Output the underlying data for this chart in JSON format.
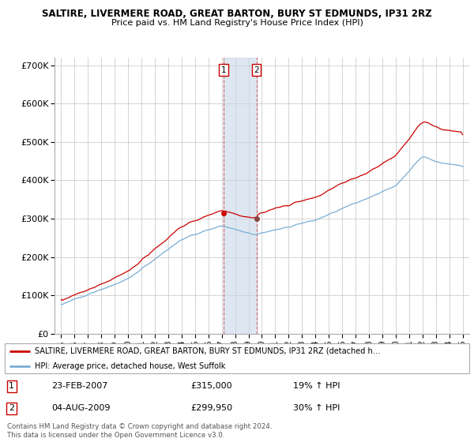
{
  "title1": "SALTIRE, LIVERMERE ROAD, GREAT BARTON, BURY ST EDMUNDS, IP31 2RZ",
  "title2": "Price paid vs. HM Land Registry's House Price Index (HPI)",
  "legend_line1": "SALTIRE, LIVERMERE ROAD, GREAT BARTON, BURY ST EDMUNDS, IP31 2RZ (detached h…",
  "legend_line2": "HPI: Average price, detached house, West Suffolk",
  "footnote": "Contains HM Land Registry data © Crown copyright and database right 2024.\nThis data is licensed under the Open Government Licence v3.0.",
  "sale1_label": "1",
  "sale1_date": "23-FEB-2007",
  "sale1_price": "£315,000",
  "sale1_hpi": "19% ↑ HPI",
  "sale2_label": "2",
  "sale2_date": "04-AUG-2009",
  "sale2_price": "£299,950",
  "sale2_hpi": "30% ↑ HPI",
  "sale1_x": 2007.14,
  "sale1_y": 315000,
  "sale2_x": 2009.59,
  "sale2_y": 299950,
  "line1_color": "#cc0000",
  "line2_color": "#7aadd4",
  "shading_color": "#c8d8e8",
  "background_color": "#ffffff",
  "grid_color": "#cccccc",
  "ylim": [
    0,
    720000
  ],
  "xlim": [
    1994.5,
    2025.5
  ],
  "yticks": [
    0,
    100000,
    200000,
    300000,
    400000,
    500000,
    600000,
    700000
  ],
  "ytick_labels": [
    "£0",
    "£100K",
    "£200K",
    "£300K",
    "£400K",
    "£500K",
    "£600K",
    "£700K"
  ],
  "xticks": [
    1995,
    1996,
    1997,
    1998,
    1999,
    2000,
    2001,
    2002,
    2003,
    2004,
    2005,
    2006,
    2007,
    2008,
    2009,
    2010,
    2011,
    2012,
    2013,
    2014,
    2015,
    2016,
    2017,
    2018,
    2019,
    2020,
    2021,
    2022,
    2023,
    2024,
    2025
  ]
}
